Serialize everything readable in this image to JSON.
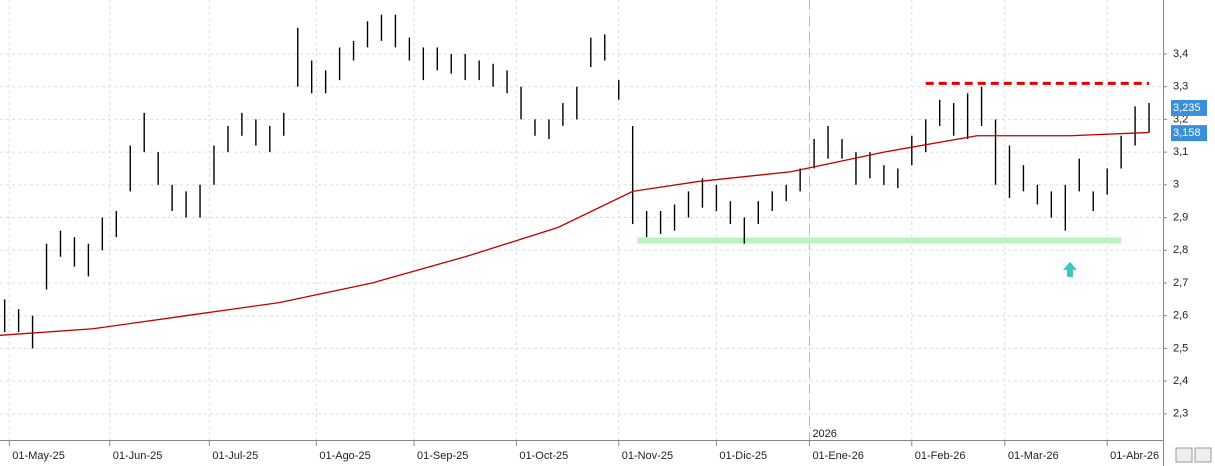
{
  "chart_data": {
    "type": "ohlc",
    "color": "#000000",
    "x": [
      1,
      4,
      7,
      10,
      13,
      16,
      19,
      22,
      25,
      28,
      31,
      34,
      37,
      40,
      43,
      46,
      49,
      52,
      55,
      58,
      61,
      64,
      67,
      70,
      73,
      76,
      79,
      82,
      85,
      88,
      91,
      94,
      97,
      100,
      103,
      106,
      109,
      112,
      115,
      118,
      121,
      124,
      127,
      130,
      133,
      136,
      139,
      142,
      145,
      148,
      151,
      154,
      157,
      160,
      163,
      166,
      169,
      172,
      175,
      178,
      181,
      184,
      187,
      190,
      193,
      196,
      199,
      202,
      205,
      208,
      211,
      214,
      217,
      220,
      223,
      226,
      229,
      232,
      235,
      238,
      241,
      244,
      247
    ],
    "low": [
      2.55,
      2.55,
      2.5,
      2.68,
      2.78,
      2.75,
      2.72,
      2.8,
      2.84,
      2.98,
      3.1,
      3.0,
      2.92,
      2.9,
      2.9,
      3.0,
      3.1,
      3.15,
      3.12,
      3.1,
      3.15,
      3.3,
      3.28,
      3.28,
      3.32,
      3.38,
      3.42,
      3.44,
      3.42,
      3.38,
      3.32,
      3.35,
      3.34,
      3.32,
      3.32,
      3.3,
      3.28,
      3.2,
      3.15,
      3.14,
      3.18,
      3.2,
      3.36,
      3.38,
      3.26,
      2.88,
      2.84,
      2.85,
      2.86,
      2.9,
      2.93,
      2.92,
      2.88,
      2.82,
      2.88,
      2.92,
      2.95,
      2.98,
      3.05,
      3.08,
      3.08,
      3.0,
      3.02,
      3.0,
      2.99,
      3.06,
      3.1,
      3.18,
      3.15,
      3.14,
      3.18,
      3.0,
      2.96,
      2.98,
      2.94,
      2.9,
      2.86,
      2.98,
      2.92,
      2.97,
      3.05,
      3.12,
      3.16
    ],
    "high": [
      2.65,
      2.62,
      2.6,
      2.82,
      2.86,
      2.84,
      2.82,
      2.9,
      2.92,
      3.12,
      3.22,
      3.1,
      3.0,
      2.98,
      3.0,
      3.12,
      3.18,
      3.22,
      3.2,
      3.18,
      3.22,
      3.48,
      3.38,
      3.35,
      3.42,
      3.44,
      3.5,
      3.52,
      3.52,
      3.45,
      3.42,
      3.42,
      3.4,
      3.4,
      3.38,
      3.37,
      3.35,
      3.3,
      3.2,
      3.2,
      3.25,
      3.3,
      3.45,
      3.46,
      3.32,
      3.18,
      2.92,
      2.92,
      2.94,
      2.98,
      3.02,
      3.0,
      2.95,
      2.9,
      2.95,
      2.98,
      3.0,
      3.05,
      3.14,
      3.18,
      3.14,
      3.1,
      3.1,
      3.06,
      3.05,
      3.15,
      3.2,
      3.26,
      3.25,
      3.28,
      3.3,
      3.2,
      3.12,
      3.06,
      3.0,
      2.98,
      3.0,
      3.08,
      2.98,
      3.05,
      3.15,
      3.24,
      3.25
    ],
    "moving_average": {
      "color": "#c00000",
      "x": [
        0,
        20,
        40,
        60,
        80,
        100,
        120,
        136,
        150,
        170,
        190,
        210,
        230,
        247
      ],
      "values": [
        2.54,
        2.56,
        2.6,
        2.64,
        2.7,
        2.78,
        2.87,
        2.98,
        3.01,
        3.04,
        3.1,
        3.15,
        3.15,
        3.16
      ]
    },
    "resistance": {
      "color": "#e00000",
      "x": [
        199,
        247
      ],
      "value": 3.31
    },
    "support": {
      "color": "#b8f5b8",
      "x": [
        137,
        241
      ],
      "value": 2.83
    },
    "arrow": {
      "color": "#3cc8c0",
      "x": 230,
      "value": 2.74
    },
    "year_marker": {
      "x": 174,
      "label": "2026"
    },
    "last_labels": [
      {
        "value": 3.235,
        "label": "3,235",
        "color": "#3a8fd8"
      },
      {
        "value": 3.158,
        "label": "3,158",
        "color": "#3a8fd8"
      }
    ],
    "xlim": [
      0,
      250
    ],
    "ylim": [
      2.22,
      3.565
    ],
    "xticks": [
      {
        "value": 2,
        "label": "01-May-25"
      },
      {
        "value": 23.6,
        "label": "01-Jun-25"
      },
      {
        "value": 45,
        "label": "01-Jul-25"
      },
      {
        "value": 68,
        "label": "01-Ago-25"
      },
      {
        "value": 89,
        "label": "01-Sep-25"
      },
      {
        "value": 111,
        "label": "01-Oct-25"
      },
      {
        "value": 133,
        "label": "01-Nov-25"
      },
      {
        "value": 154,
        "label": "01-Dic-25"
      },
      {
        "value": 174,
        "label": "01-Ene-26"
      },
      {
        "value": 196,
        "label": "01-Feb-26"
      },
      {
        "value": 216,
        "label": "01-Mar-26"
      },
      {
        "value": 238,
        "label": "01-Abr-26"
      }
    ],
    "yticks": [
      {
        "value": 2.3,
        "label": "2,3"
      },
      {
        "value": 2.4,
        "label": "2,4"
      },
      {
        "value": 2.5,
        "label": "2,5"
      },
      {
        "value": 2.6,
        "label": "2,6"
      },
      {
        "value": 2.7,
        "label": "2,7"
      },
      {
        "value": 2.8,
        "label": "2,8"
      },
      {
        "value": 2.9,
        "label": "2,9"
      },
      {
        "value": 3,
        "label": "3"
      },
      {
        "value": 3.1,
        "label": "3,1"
      },
      {
        "value": 3.2,
        "label": "3,2"
      },
      {
        "value": 3.3,
        "label": "3,3"
      },
      {
        "value": 3.4,
        "label": "3,4"
      }
    ],
    "grid": true
  }
}
